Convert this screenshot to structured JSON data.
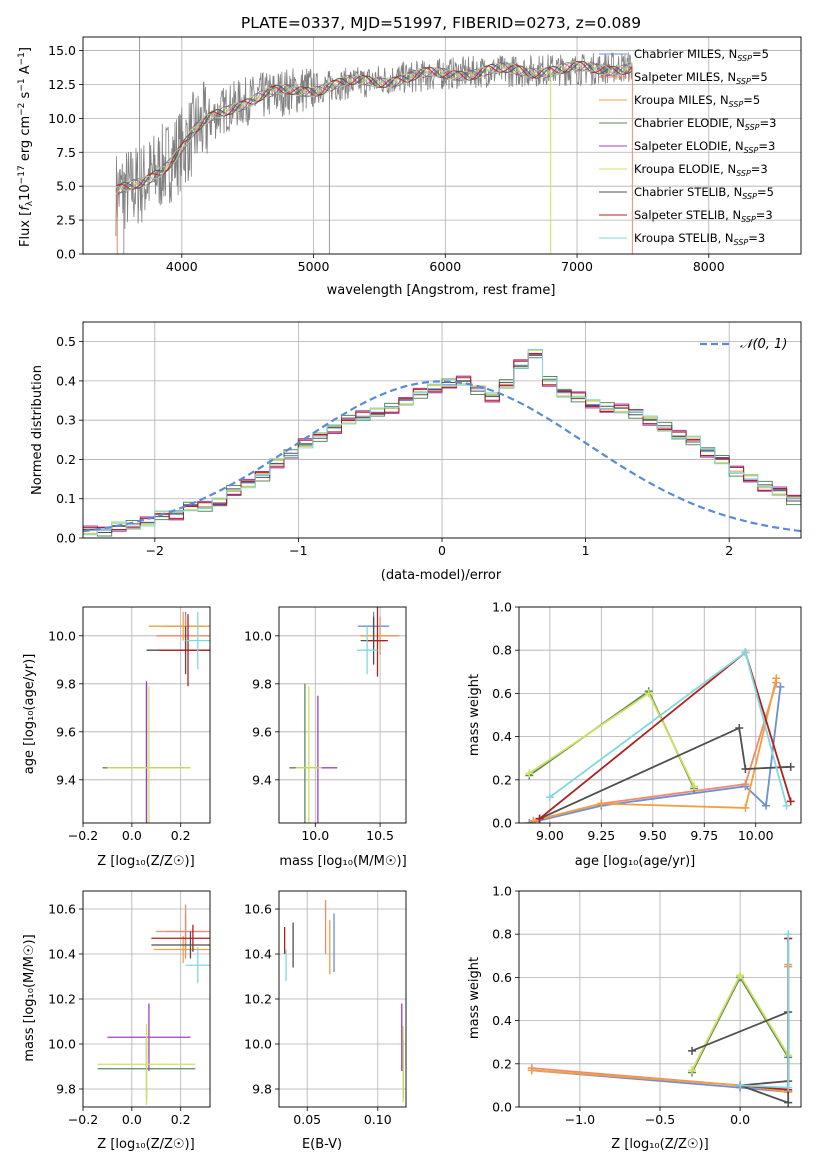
{
  "title": "PLATE=0337, MJD=51997, FIBERID=0273, z=0.089",
  "legend_entries": [
    {
      "label": "Chabrier MILES, N",
      "sub": "SSP",
      "suffix": "=5",
      "color": "#6b8fd6"
    },
    {
      "label": "Salpeter MILES, N",
      "sub": "SSP",
      "suffix": "=5",
      "color": "#f08a6a"
    },
    {
      "label": "Kroupa MILES, N",
      "sub": "SSP",
      "suffix": "=5",
      "color": "#f0a040"
    },
    {
      "label": "Chabrier ELODIE, N",
      "sub": "SSP",
      "suffix": "=3",
      "color": "#5a8a5a"
    },
    {
      "label": "Salpeter ELODIE, N",
      "sub": "SSP",
      "suffix": "=3",
      "color": "#a040c0"
    },
    {
      "label": "Kroupa ELODIE, N",
      "sub": "SSP",
      "suffix": "=3",
      "color": "#d0e060"
    },
    {
      "label": "Chabrier STELIB, N",
      "sub": "SSP",
      "suffix": "=5",
      "color": "#505050"
    },
    {
      "label": "Salpeter STELIB, N",
      "sub": "SSP",
      "suffix": "=3",
      "color": "#b02020"
    },
    {
      "label": "Kroupa STELIB, N",
      "sub": "SSP",
      "suffix": "=3",
      "color": "#80d8e0"
    }
  ],
  "labels": {
    "spec_xlabel": "wavelength [Angstrom, rest frame]",
    "spec_ylabel_a": "Flux [",
    "spec_ylabel_b": "f",
    "spec_ylabel_c": "λ",
    "spec_ylabel_d": "10",
    "spec_ylabel_e": "−17",
    "spec_ylabel_f": " erg cm",
    "spec_ylabel_g": "−2",
    "spec_ylabel_h": " s",
    "spec_ylabel_i": "−1",
    "spec_ylabel_j": " A",
    "spec_ylabel_k": "−1",
    "spec_ylabel_l": "]",
    "hist_xlabel": "(data-model)/error",
    "hist_ylabel": "Normed distribution",
    "hist_legend": "𝒩(0, 1)",
    "age_label": "age  [log₁₀(age/yr)]",
    "z_label": "Z [log₁₀(Z/Z☉)]",
    "mass_label": "mass [log₁₀(M/M☉)]",
    "ebv_label": "E(B-V)",
    "mw_label": "mass weight"
  },
  "chart_data": [
    {
      "type": "line",
      "id": "spectrum",
      "title": "PLATE=0337, MJD=51997, FIBERID=0273, z=0.089",
      "xlabel": "wavelength [Angstrom, rest frame]",
      "ylabel": "Flux [f_λ 10^-17 erg cm^-2 s^-1 A^-1]",
      "xlim": [
        3250,
        8700
      ],
      "ylim": [
        0,
        16
      ],
      "xticks": [
        4000,
        5000,
        6000,
        7000,
        8000
      ],
      "yticks": [
        0.0,
        2.5,
        5.0,
        7.5,
        10.0,
        12.5,
        15.0
      ],
      "continuum": {
        "x": [
          3500,
          3600,
          3700,
          3800,
          3900,
          4000,
          4100,
          4200,
          4300,
          4400,
          4500,
          4600,
          4800,
          5000,
          5200,
          5400,
          5600,
          5800,
          6000,
          6200,
          6400,
          6600,
          6800,
          7000,
          7200,
          7400
        ],
        "y": [
          4.5,
          4.8,
          5.2,
          6.0,
          6.8,
          7.8,
          9.0,
          9.8,
          10.5,
          11.0,
          11.3,
          11.6,
          12.0,
          12.2,
          12.5,
          12.7,
          12.9,
          13.1,
          13.3,
          13.4,
          13.5,
          13.5,
          13.6,
          13.6,
          13.7,
          13.8
        ]
      },
      "grid": true,
      "legend_position": "right"
    },
    {
      "type": "bar",
      "id": "residual-histogram",
      "xlabel": "(data-model)/error",
      "ylabel": "Normed distribution",
      "xlim": [
        -2.5,
        2.5
      ],
      "ylim": [
        0,
        0.55
      ],
      "xticks": [
        -2,
        -1,
        0,
        1,
        2
      ],
      "yticks": [
        0.0,
        0.1,
        0.2,
        0.3,
        0.4,
        0.5
      ],
      "bin_width": 0.1,
      "bin_edges_start": -2.5,
      "values": [
        0.02,
        0.02,
        0.03,
        0.03,
        0.04,
        0.06,
        0.06,
        0.08,
        0.08,
        0.09,
        0.12,
        0.14,
        0.16,
        0.19,
        0.21,
        0.24,
        0.26,
        0.28,
        0.3,
        0.31,
        0.32,
        0.33,
        0.35,
        0.37,
        0.38,
        0.39,
        0.4,
        0.38,
        0.36,
        0.39,
        0.44,
        0.47,
        0.4,
        0.37,
        0.36,
        0.34,
        0.33,
        0.33,
        0.32,
        0.3,
        0.28,
        0.26,
        0.25,
        0.22,
        0.2,
        0.17,
        0.15,
        0.13,
        0.12,
        0.1,
        0.09,
        0.08,
        0.07,
        0.06,
        0.05,
        0.05,
        0.04,
        0.04,
        0.03,
        0.03,
        0.03
      ],
      "legend": "𝒩(0, 1)",
      "legend_position": "top-right",
      "grid": true
    },
    {
      "type": "scatter",
      "id": "z-age",
      "xlabel": "Z [log₁₀(Z/Z☉)]",
      "ylabel": "age  [log₁₀(age/yr)]",
      "xlim": [
        -0.2,
        0.32
      ],
      "ylim": [
        9.22,
        10.12
      ],
      "xticks": [
        -0.2,
        0.0,
        0.2
      ],
      "yticks": [
        9.4,
        9.6,
        9.8,
        10.0
      ],
      "points": [
        {
          "x": 0.22,
          "y": 10.04,
          "xerr": 0.08,
          "yerr": 0.06,
          "color": "#6b8fd6"
        },
        {
          "x": 0.22,
          "y": 10.0,
          "xerr": 0.12,
          "yerr": 0.08,
          "color": "#f08a6a"
        },
        {
          "x": 0.21,
          "y": 10.04,
          "xerr": 0.14,
          "yerr": 0.06,
          "color": "#f0a040"
        },
        {
          "x": 0.06,
          "y": 9.45,
          "xerr": 0.18,
          "yerr": 0.35,
          "color": "#5a8a5a"
        },
        {
          "x": 0.06,
          "y": 9.45,
          "xerr": 0.15,
          "yerr": 0.36,
          "color": "#a040c0"
        },
        {
          "x": 0.07,
          "y": 9.45,
          "xerr": 0.17,
          "yerr": 0.34,
          "color": "#d0e060"
        },
        {
          "x": 0.22,
          "y": 9.94,
          "xerr": 0.16,
          "yerr": 0.1,
          "color": "#505050"
        },
        {
          "x": 0.23,
          "y": 9.94,
          "xerr": 0.12,
          "yerr": 0.15,
          "color": "#b02020"
        },
        {
          "x": 0.27,
          "y": 9.98,
          "xerr": 0.05,
          "yerr": 0.12,
          "color": "#80d8e0"
        }
      ]
    },
    {
      "type": "scatter",
      "id": "mass-age",
      "xlabel": "mass [log₁₀(M/M☉)]",
      "ylabel": "",
      "xlim": [
        9.72,
        10.7
      ],
      "ylim": [
        9.22,
        10.12
      ],
      "xticks": [
        10.0,
        10.5
      ],
      "yticks": [
        9.4,
        9.6,
        9.8,
        10.0
      ],
      "points": [
        {
          "x": 10.45,
          "y": 10.04,
          "xerr": 0.12,
          "yerr": 0.06,
          "color": "#6b8fd6"
        },
        {
          "x": 10.5,
          "y": 10.0,
          "xerr": 0.15,
          "yerr": 0.08,
          "color": "#f08a6a"
        },
        {
          "x": 10.45,
          "y": 10.0,
          "xerr": 0.1,
          "yerr": 0.06,
          "color": "#f0a040"
        },
        {
          "x": 9.92,
          "y": 9.45,
          "xerr": 0.12,
          "yerr": 0.35,
          "color": "#5a8a5a"
        },
        {
          "x": 10.02,
          "y": 9.45,
          "xerr": 0.15,
          "yerr": 0.3,
          "color": "#a040c0"
        },
        {
          "x": 9.95,
          "y": 9.45,
          "xerr": 0.1,
          "yerr": 0.34,
          "color": "#d0e060"
        },
        {
          "x": 10.45,
          "y": 9.98,
          "xerr": 0.1,
          "yerr": 0.1,
          "color": "#505050"
        },
        {
          "x": 10.48,
          "y": 9.98,
          "xerr": 0.08,
          "yerr": 0.15,
          "color": "#b02020"
        },
        {
          "x": 10.4,
          "y": 9.94,
          "xerr": 0.08,
          "yerr": 0.1,
          "color": "#80d8e0"
        }
      ]
    },
    {
      "type": "line",
      "id": "age-massweight",
      "xlabel": "age  [log₁₀(age/yr)]",
      "ylabel": "mass weight",
      "xlim": [
        8.85,
        10.22
      ],
      "ylim": [
        0,
        1
      ],
      "xticks": [
        9.0,
        9.25,
        9.5,
        9.75,
        10.0
      ],
      "yticks": [
        0.0,
        0.2,
        0.4,
        0.6,
        0.8,
        1.0
      ],
      "series": [
        {
          "color": "#6b8fd6",
          "x": [
            8.9,
            9.25,
            9.95,
            10.05,
            10.12
          ],
          "y": [
            0.0,
            0.08,
            0.17,
            0.08,
            0.63
          ]
        },
        {
          "color": "#f08a6a",
          "x": [
            8.92,
            9.25,
            9.95,
            10.1
          ],
          "y": [
            0.01,
            0.09,
            0.18,
            0.65
          ]
        },
        {
          "color": "#f0a040",
          "x": [
            8.92,
            9.25,
            9.95,
            10.1
          ],
          "y": [
            0.01,
            0.09,
            0.07,
            0.67
          ]
        },
        {
          "color": "#5a8a5a",
          "x": [
            8.9,
            9.48,
            9.7
          ],
          "y": [
            0.22,
            0.61,
            0.16
          ]
        },
        {
          "color": "#d0e060",
          "x": [
            8.9,
            9.48,
            9.7
          ],
          "y": [
            0.23,
            0.6,
            0.17
          ]
        },
        {
          "color": "#505050",
          "x": [
            8.95,
            9.92,
            9.95,
            10.17
          ],
          "y": [
            0.02,
            0.44,
            0.25,
            0.26
          ]
        },
        {
          "color": "#b02020",
          "x": [
            8.95,
            9.95,
            10.17
          ],
          "y": [
            0.02,
            0.79,
            0.1
          ]
        },
        {
          "color": "#80d8e0",
          "x": [
            9.0,
            9.95,
            10.15
          ],
          "y": [
            0.12,
            0.79,
            0.08
          ]
        }
      ],
      "grid": true
    },
    {
      "type": "scatter",
      "id": "z-mass",
      "xlabel": "Z [log₁₀(Z/Z☉)]",
      "ylabel": "mass [log₁₀(M/M☉)]",
      "xlim": [
        -0.2,
        0.32
      ],
      "ylim": [
        9.72,
        10.68
      ],
      "xticks": [
        -0.2,
        0.0,
        0.2
      ],
      "yticks": [
        9.8,
        10.0,
        10.2,
        10.4,
        10.6
      ],
      "points": [
        {
          "x": 0.22,
          "y": 10.5,
          "xerr": 0.08,
          "yerr": 0.08,
          "color": "#6b8fd6"
        },
        {
          "x": 0.22,
          "y": 10.5,
          "xerr": 0.12,
          "yerr": 0.12,
          "color": "#f08a6a"
        },
        {
          "x": 0.21,
          "y": 10.42,
          "xerr": 0.12,
          "yerr": 0.06,
          "color": "#f0a040"
        },
        {
          "x": 0.06,
          "y": 9.89,
          "xerr": 0.2,
          "yerr": 0.13,
          "color": "#5a8a5a"
        },
        {
          "x": 0.07,
          "y": 10.03,
          "xerr": 0.17,
          "yerr": 0.15,
          "color": "#a040c0"
        },
        {
          "x": 0.06,
          "y": 9.91,
          "xerr": 0.2,
          "yerr": 0.18,
          "color": "#d0e060"
        },
        {
          "x": 0.24,
          "y": 10.44,
          "xerr": 0.16,
          "yerr": 0.06,
          "color": "#505050"
        },
        {
          "x": 0.25,
          "y": 10.47,
          "xerr": 0.17,
          "yerr": 0.06,
          "color": "#b02020"
        },
        {
          "x": 0.27,
          "y": 10.35,
          "xerr": 0.05,
          "yerr": 0.08,
          "color": "#80d8e0"
        }
      ]
    },
    {
      "type": "scatter",
      "id": "ebv-mass",
      "xlabel": "E(B-V)",
      "ylabel": "",
      "xlim": [
        0.03,
        0.12
      ],
      "ylim": [
        9.72,
        10.68
      ],
      "xticks": [
        0.05,
        0.1
      ],
      "yticks": [
        9.8,
        10.0,
        10.2,
        10.4,
        10.6
      ],
      "points": [
        {
          "x": 0.069,
          "y": 10.45,
          "yerr": 0.13,
          "color": "#6b8fd6"
        },
        {
          "x": 0.063,
          "y": 10.52,
          "yerr": 0.12,
          "color": "#f08a6a"
        },
        {
          "x": 0.066,
          "y": 10.43,
          "yerr": 0.12,
          "color": "#f0a040"
        },
        {
          "x": 0.118,
          "y": 9.89,
          "yerr": 0.13,
          "color": "#5a8a5a"
        },
        {
          "x": 0.117,
          "y": 10.03,
          "yerr": 0.15,
          "color": "#a040c0"
        },
        {
          "x": 0.118,
          "y": 9.91,
          "yerr": 0.17,
          "color": "#d0e060"
        },
        {
          "x": 0.04,
          "y": 10.44,
          "yerr": 0.1,
          "color": "#505050"
        },
        {
          "x": 0.034,
          "y": 10.46,
          "yerr": 0.06,
          "color": "#b02020"
        },
        {
          "x": 0.035,
          "y": 10.35,
          "yerr": 0.07,
          "color": "#80d8e0"
        }
      ]
    },
    {
      "type": "line",
      "id": "z-massweight",
      "xlabel": "Z [log₁₀(Z/Z☉)]",
      "ylabel": "mass weight",
      "xlim": [
        -1.38,
        0.38
      ],
      "ylim": [
        0,
        1
      ],
      "xticks": [
        -1.0,
        -0.5,
        0.0
      ],
      "yticks": [
        0.0,
        0.2,
        0.4,
        0.6,
        0.8,
        1.0
      ],
      "series": [
        {
          "color": "#6b8fd6",
          "x": [
            -1.3,
            0.0,
            0.3,
            0.3,
            0.3
          ],
          "y": [
            0.17,
            0.09,
            0.07,
            0.78,
            0.07
          ]
        },
        {
          "color": "#f08a6a",
          "x": [
            -1.3,
            0.0,
            0.3,
            0.3
          ],
          "y": [
            0.18,
            0.1,
            0.08,
            0.65
          ]
        },
        {
          "color": "#f0a040",
          "x": [
            -1.3,
            0.0,
            0.3,
            0.3
          ],
          "y": [
            0.17,
            0.1,
            0.07,
            0.66
          ]
        },
        {
          "color": "#5a8a5a",
          "x": [
            -0.3,
            0.0,
            0.3
          ],
          "y": [
            0.16,
            0.6,
            0.23
          ]
        },
        {
          "color": "#d0e060",
          "x": [
            -0.3,
            0.0,
            0.3
          ],
          "y": [
            0.17,
            0.61,
            0.24
          ]
        },
        {
          "color": "#505050",
          "x": [
            -0.3,
            0.3,
            0.3,
            0.0,
            0.3
          ],
          "y": [
            0.26,
            0.44,
            0.02,
            0.1,
            0.12
          ]
        },
        {
          "color": "#b02020",
          "x": [
            0.0,
            0.3,
            0.3
          ],
          "y": [
            0.1,
            0.08,
            0.78
          ]
        },
        {
          "color": "#80d8e0",
          "x": [
            0.0,
            0.3,
            0.3
          ],
          "y": [
            0.1,
            0.09,
            0.8
          ]
        }
      ],
      "grid": true
    }
  ]
}
